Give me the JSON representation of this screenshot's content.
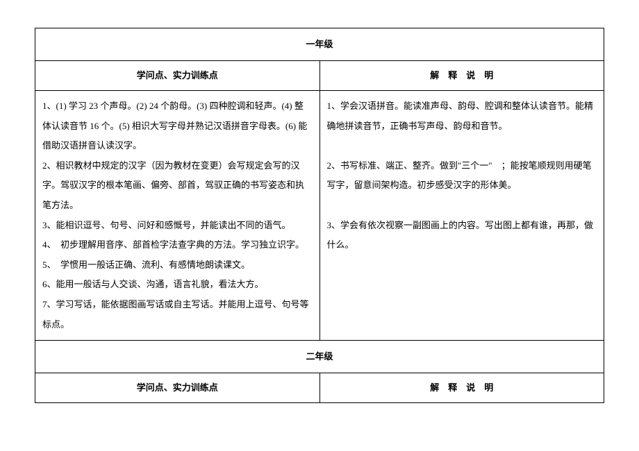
{
  "grade1": {
    "title": "一年级",
    "col1_header": "学问点、实力训练点",
    "col2_header": "解　释　说　明",
    "col1_content": "1、(1) 学习 23 个声母。(2) 24 个韵母。(3) 四种腔调和轻声。(4) 整体认读音节 16 个。(5) 相识大写字母并熟记汉语拼音字母表。(6) 能借助汉语拼音认读汉字。\n2、相识教材中规定的汉字（因为教材在变更）会写规定会写的汉字。驾驭汉字的根本笔画、偏旁、部首，驾驭正确的书写姿态和执笔方法。\n3、能相识逗号、句号、问好和感慨号，并能读出不同的语气。\n4、　初步理解用音序、部首检字法查字典的方法。学习独立识字。\n5、　学惯用一般话正确、流利、有感情地朗读课文。\n6、能用一般话与人交谈、沟通，语言礼貌，看法大方。\n7、学习写话，能依据图画写话或自主写话。并能用上逗号、句号等标点。",
    "col2_content": "1、学会汉语拼音。能读准声母、韵母、腔调和整体认读音节。能精确地拼读音节，正确书写声母、韵母和音节。\n\n2、书写标准、端正、整齐。做到\"三个一\"　；能按笔顺规则用硬笔写字，留意间架构造。初步感受汉字的形体美。\n\n3、学会有依次视察一副图画上的内容。写出图上都有谁，再那，做什么。"
  },
  "grade2": {
    "title": "二年级",
    "col1_header": "学问点、实力训练点",
    "col2_header": "解　释　说　明"
  },
  "styles": {
    "border_color": "#000000",
    "text_color": "#000000",
    "background_color": "#ffffff",
    "font_size_body": 13,
    "font_size_header": 13,
    "line_height": 2.2,
    "padding_cell": "8px 10px"
  }
}
